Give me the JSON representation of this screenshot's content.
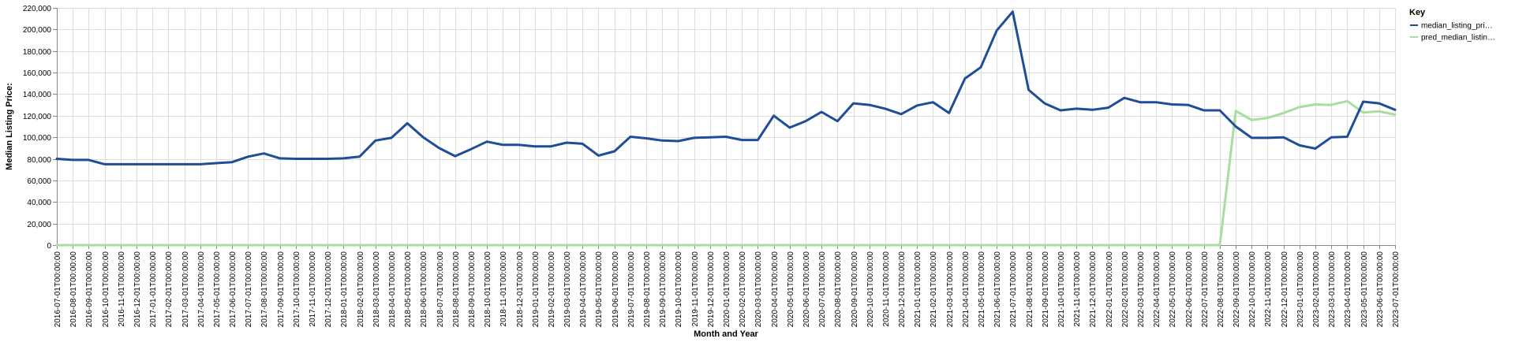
{
  "chart_data": {
    "type": "line",
    "xlabel": "Month and Year",
    "ylabel": "Median Listing Price:",
    "ylim": [
      0,
      220000
    ],
    "y_ticks": [
      0,
      20000,
      40000,
      60000,
      80000,
      100000,
      120000,
      140000,
      160000,
      180000,
      200000,
      220000
    ],
    "y_tick_labels": [
      "0",
      "20,000",
      "40,000",
      "60,000",
      "80,000",
      "100,000",
      "120,000",
      "140,000",
      "160,000",
      "180,000",
      "200,000",
      "220,000"
    ],
    "grid": true,
    "legend": {
      "title": "Key",
      "position": "top-right"
    },
    "x": [
      "2016-07-01T00:00:00",
      "2016-08-01T00:00:00",
      "2016-09-01T00:00:00",
      "2016-10-01T00:00:00",
      "2016-11-01T00:00:00",
      "2016-12-01T00:00:00",
      "2017-01-01T00:00:00",
      "2017-02-01T00:00:00",
      "2017-03-01T00:00:00",
      "2017-04-01T00:00:00",
      "2017-05-01T00:00:00",
      "2017-06-01T00:00:00",
      "2017-07-01T00:00:00",
      "2017-08-01T00:00:00",
      "2017-09-01T00:00:00",
      "2017-10-01T00:00:00",
      "2017-11-01T00:00:00",
      "2017-12-01T00:00:00",
      "2018-01-01T00:00:00",
      "2018-02-01T00:00:00",
      "2018-03-01T00:00:00",
      "2018-04-01T00:00:00",
      "2018-05-01T00:00:00",
      "2018-06-01T00:00:00",
      "2018-07-01T00:00:00",
      "2018-08-01T00:00:00",
      "2018-09-01T00:00:00",
      "2018-10-01T00:00:00",
      "2018-11-01T00:00:00",
      "2018-12-01T00:00:00",
      "2019-01-01T00:00:00",
      "2019-02-01T00:00:00",
      "2019-03-01T00:00:00",
      "2019-04-01T00:00:00",
      "2019-05-01T00:00:00",
      "2019-06-01T00:00:00",
      "2019-07-01T00:00:00",
      "2019-08-01T00:00:00",
      "2019-09-01T00:00:00",
      "2019-10-01T00:00:00",
      "2019-11-01T00:00:00",
      "2019-12-01T00:00:00",
      "2020-01-01T00:00:00",
      "2020-02-01T00:00:00",
      "2020-03-01T00:00:00",
      "2020-04-01T00:00:00",
      "2020-05-01T00:00:00",
      "2020-06-01T00:00:00",
      "2020-07-01T00:00:00",
      "2020-08-01T00:00:00",
      "2020-09-01T00:00:00",
      "2020-10-01T00:00:00",
      "2020-11-01T00:00:00",
      "2020-12-01T00:00:00",
      "2021-01-01T00:00:00",
      "2021-02-01T00:00:00",
      "2021-03-01T00:00:00",
      "2021-04-01T00:00:00",
      "2021-05-01T00:00:00",
      "2021-06-01T00:00:00",
      "2021-07-01T00:00:00",
      "2021-08-01T00:00:00",
      "2021-09-01T00:00:00",
      "2021-10-01T00:00:00",
      "2021-11-01T00:00:00",
      "2021-12-01T00:00:00",
      "2022-01-01T00:00:00",
      "2022-02-01T00:00:00",
      "2022-03-01T00:00:00",
      "2022-04-01T00:00:00",
      "2022-05-01T00:00:00",
      "2022-06-01T00:00:00",
      "2022-07-01T00:00:00",
      "2022-08-01T00:00:00",
      "2022-09-01T00:00:00",
      "2022-10-01T00:00:00",
      "2022-11-01T00:00:00",
      "2022-12-01T00:00:00",
      "2023-01-01T00:00:00",
      "2023-02-01T00:00:00",
      "2023-03-01T00:00:00",
      "2023-04-01T00:00:00",
      "2023-05-01T00:00:00",
      "2023-06-01T00:00:00",
      "2023-07-01T00:00:00"
    ],
    "series": [
      {
        "name": "median_listing_pri…",
        "color": "#1f4e96",
        "values": [
          80000,
          79000,
          79000,
          75000,
          75000,
          75000,
          75000,
          75000,
          75000,
          75000,
          76000,
          77000,
          82000,
          85000,
          80500,
          80000,
          80000,
          80000,
          80500,
          82000,
          97000,
          99500,
          113000,
          100000,
          90000,
          82500,
          89000,
          96000,
          93000,
          93000,
          91500,
          91500,
          95000,
          94000,
          83000,
          87000,
          100500,
          99000,
          97000,
          96500,
          99500,
          100000,
          100500,
          97500,
          97500,
          120000,
          109000,
          115000,
          123500,
          115000,
          131500,
          130000,
          126500,
          121500,
          129500,
          132500,
          122500,
          154500,
          165000,
          199000,
          216500,
          144000,
          131500,
          125000,
          126500,
          125500,
          127500,
          136500,
          132500,
          132500,
          130500,
          130000,
          125000,
          125000,
          110000,
          99500,
          99500,
          100000,
          92500,
          89500,
          100000,
          100500,
          133000,
          131500,
          125500
        ]
      },
      {
        "name": "pred_median_listin…",
        "color": "#a8dca0",
        "values": [
          0,
          0,
          0,
          0,
          0,
          0,
          0,
          0,
          0,
          0,
          0,
          0,
          0,
          0,
          0,
          0,
          0,
          0,
          0,
          0,
          0,
          0,
          0,
          0,
          0,
          0,
          0,
          0,
          0,
          0,
          0,
          0,
          0,
          0,
          0,
          0,
          0,
          0,
          0,
          0,
          0,
          0,
          0,
          0,
          0,
          0,
          0,
          0,
          0,
          0,
          0,
          0,
          0,
          0,
          0,
          0,
          0,
          0,
          0,
          0,
          0,
          0,
          0,
          0,
          0,
          0,
          0,
          0,
          0,
          0,
          0,
          0,
          0,
          0,
          124500,
          116000,
          118000,
          122500,
          128000,
          130500,
          130000,
          133500,
          123000,
          124000,
          121000
        ]
      }
    ]
  }
}
